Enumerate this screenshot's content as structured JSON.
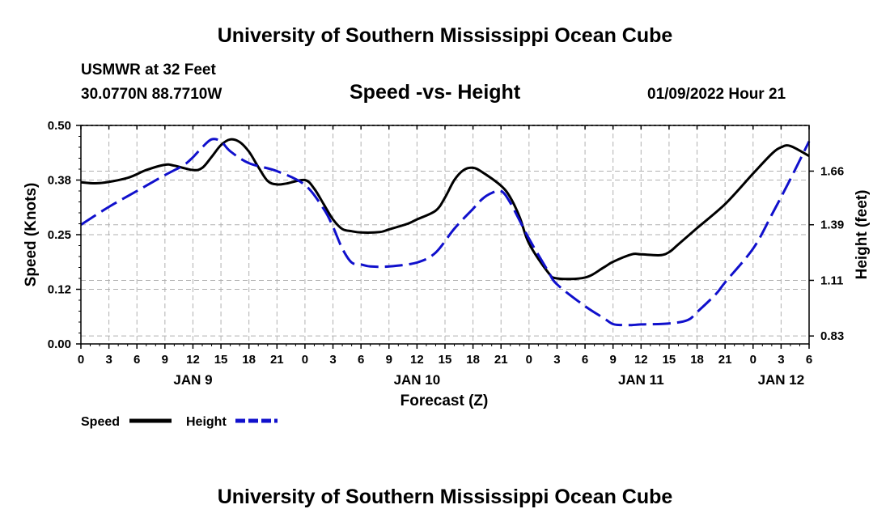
{
  "header": {
    "title": "University of Southern Mississippi Ocean Cube",
    "station": "USMWR at 32 Feet",
    "coordinates": "30.0770N  88.7710W",
    "chart_title": "Speed -vs- Height",
    "datetime": "01/09/2022 Hour 21"
  },
  "footer": {
    "title": "University of Southern Mississippi Ocean Cube"
  },
  "colors": {
    "speed": "#000000",
    "height": "#1010cc",
    "grid": "#b0b0b0"
  },
  "chart_data": {
    "type": "line",
    "title": "Speed -vs- Height",
    "xlabel": "Forecast (Z)",
    "ylabel": "Speed (Knots)",
    "y2label": "Height (feet)",
    "x_hours": [
      0,
      3,
      6,
      9,
      12,
      15,
      18,
      21,
      24,
      27,
      30,
      33,
      36,
      39,
      42,
      45,
      48,
      51,
      54,
      57,
      60,
      63,
      66,
      69,
      72,
      75,
      78
    ],
    "x_tick_labels": [
      "0",
      "3",
      "6",
      "9",
      "12",
      "15",
      "18",
      "21",
      "0",
      "3",
      "6",
      "9",
      "12",
      "15",
      "18",
      "21",
      "0",
      "3",
      "6",
      "9",
      "12",
      "15",
      "18",
      "21",
      "0",
      "3",
      "6"
    ],
    "date_labels": [
      {
        "label": "JAN 9",
        "hour": 12
      },
      {
        "label": "JAN 10",
        "hour": 36
      },
      {
        "label": "JAN 11",
        "hour": 60
      },
      {
        "label": "JAN 12",
        "hour": 75
      }
    ],
    "xlim": [
      0,
      78
    ],
    "ylim": [
      0,
      0.5
    ],
    "y_ticks": [
      0.0,
      0.125,
      0.25,
      0.375,
      0.5
    ],
    "y_tick_labels": [
      "0.00",
      "0.12",
      "0.25",
      "0.38",
      "0.50"
    ],
    "y2lim": [
      0.79,
      1.89
    ],
    "y2_ticks": [
      0.83,
      1.11,
      1.39,
      1.66
    ],
    "y2_tick_labels": [
      "0.83",
      "1.11",
      "1.39",
      "1.66"
    ],
    "series": [
      {
        "name": "Speed",
        "axis": "left",
        "style": "solid",
        "x": [
          0,
          2,
          5,
          7,
          9,
          10,
          12,
          13,
          14,
          15,
          16,
          17,
          18,
          19,
          20,
          21,
          22,
          24,
          25,
          26,
          27,
          28,
          29,
          30,
          32,
          33,
          35,
          36,
          38,
          39,
          40,
          41,
          42,
          43,
          45,
          46,
          47,
          48,
          50,
          51,
          54,
          56,
          57,
          59,
          60,
          62,
          63,
          64,
          66,
          69,
          72,
          74,
          75,
          76,
          78
        ],
        "values": [
          0.37,
          0.368,
          0.38,
          0.398,
          0.41,
          0.408,
          0.398,
          0.403,
          0.428,
          0.455,
          0.468,
          0.462,
          0.44,
          0.405,
          0.373,
          0.365,
          0.367,
          0.375,
          0.355,
          0.32,
          0.285,
          0.263,
          0.258,
          0.255,
          0.256,
          0.262,
          0.275,
          0.285,
          0.305,
          0.335,
          0.375,
          0.398,
          0.403,
          0.393,
          0.362,
          0.335,
          0.29,
          0.23,
          0.165,
          0.15,
          0.152,
          0.175,
          0.188,
          0.205,
          0.205,
          0.203,
          0.21,
          0.228,
          0.265,
          0.32,
          0.39,
          0.435,
          0.45,
          0.453,
          0.43
        ]
      },
      {
        "name": "Height",
        "axis": "right",
        "style": "dashed",
        "x": [
          0,
          3,
          6,
          9,
          11,
          12,
          13,
          14,
          15,
          16,
          18,
          21,
          24,
          26,
          27,
          28,
          29,
          30,
          31,
          33,
          36,
          38,
          40,
          42,
          43,
          44,
          45,
          46,
          48,
          50,
          51,
          54,
          56,
          57,
          58,
          59,
          60,
          63,
          65,
          66,
          68,
          69,
          72,
          74,
          76,
          78
        ],
        "values": [
          1.39,
          1.48,
          1.56,
          1.64,
          1.69,
          1.73,
          1.78,
          1.82,
          1.81,
          1.76,
          1.7,
          1.66,
          1.59,
          1.47,
          1.38,
          1.27,
          1.2,
          1.19,
          1.18,
          1.18,
          1.2,
          1.25,
          1.37,
          1.47,
          1.52,
          1.55,
          1.56,
          1.5,
          1.32,
          1.16,
          1.09,
          0.98,
          0.92,
          0.89,
          0.885,
          0.885,
          0.888,
          0.893,
          0.91,
          0.95,
          1.04,
          1.1,
          1.27,
          1.44,
          1.62,
          1.81
        ]
      }
    ],
    "legend": {
      "position": "bottom-left",
      "entries": [
        {
          "label": "Speed",
          "style": "solid"
        },
        {
          "label": "Height",
          "style": "dashed"
        }
      ]
    },
    "grid": true
  }
}
